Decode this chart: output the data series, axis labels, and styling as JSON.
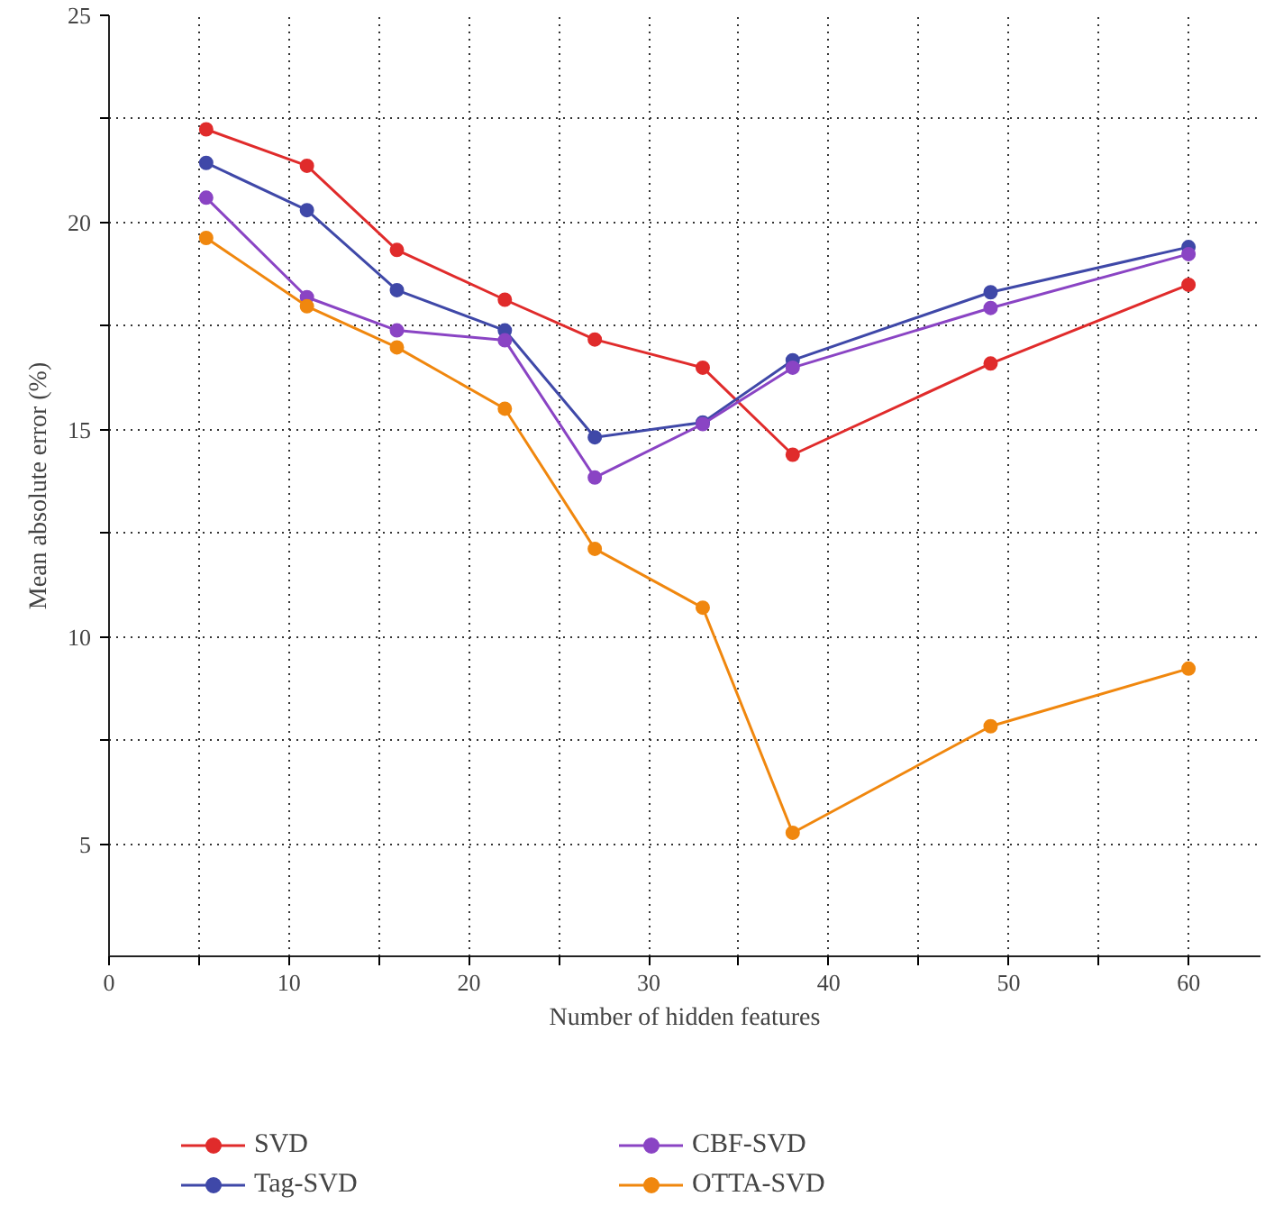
{
  "chart_data": {
    "type": "line",
    "xlabel": "Number of hidden features",
    "ylabel": "Mean absolute error (%)",
    "x": [
      5.4,
      11,
      16,
      22,
      27,
      33,
      38,
      49,
      60
    ],
    "series": [
      {
        "name": "SVD",
        "color": "#e02b2b",
        "values": [
          22.25,
          21.37,
          19.34,
          18.14,
          17.18,
          16.5,
          14.4,
          16.6,
          18.5
        ]
      },
      {
        "name": "Tag-SVD",
        "color": "#3f48a8",
        "values": [
          21.44,
          20.3,
          18.37,
          17.4,
          14.82,
          15.18,
          16.68,
          18.32,
          19.41
        ]
      },
      {
        "name": "CBF-SVD",
        "color": "#8a44c4",
        "values": [
          20.6,
          18.2,
          17.4,
          17.16,
          13.85,
          15.14,
          16.5,
          17.94,
          19.24
        ]
      },
      {
        "name": "OTTA-SVD",
        "color": "#f0870e",
        "values": [
          19.63,
          17.98,
          16.99,
          15.51,
          12.13,
          10.71,
          5.28,
          7.85,
          9.24
        ]
      }
    ],
    "xlim": [
      0,
      64
    ],
    "ylim": [
      2.3,
      25
    ],
    "xticks": [
      0,
      {
        "value": 5,
        "label": null
      },
      10,
      {
        "value": 15,
        "label": null
      },
      20,
      {
        "value": 25,
        "label": null
      },
      30,
      {
        "value": 35,
        "label": null
      },
      40,
      {
        "value": 45,
        "label": null
      },
      50,
      {
        "value": 55,
        "label": null
      },
      60
    ],
    "yticks": [
      5,
      {
        "value": 7.5,
        "label": null
      },
      10,
      {
        "value": 12.5,
        "label": null
      },
      15,
      {
        "value": 17.5,
        "label": null
      },
      20,
      {
        "value": 22.5,
        "label": null
      },
      25
    ],
    "grid": true,
    "legend": "bottom",
    "marker": "circle",
    "line_style": "solid"
  }
}
